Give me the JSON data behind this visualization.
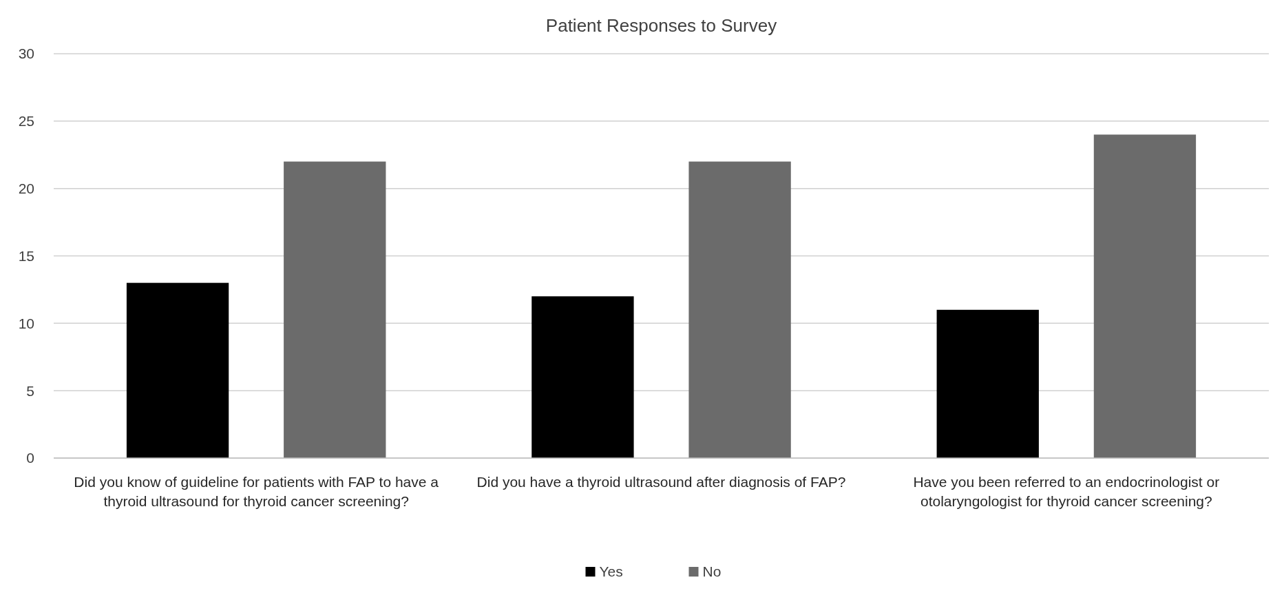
{
  "chart_data": {
    "type": "bar",
    "title": "Patient Responses to Survey",
    "categories": [
      "Did you know of guideline for patients with FAP to have a thyroid ultrasound for thyroid cancer screening?",
      "Did you have a thyroid ultrasound after diagnosis of FAP?",
      "Have you been referred to an endocrinologist or otolaryngologist for thyroid cancer screening?"
    ],
    "series": [
      {
        "name": "Yes",
        "color": "#000000",
        "values": [
          13,
          12,
          11
        ]
      },
      {
        "name": "No",
        "color": "#6b6b6b",
        "values": [
          22,
          22,
          24
        ]
      }
    ],
    "ylim": [
      0,
      30
    ],
    "yticks": [
      0,
      5,
      10,
      15,
      20,
      25,
      30
    ],
    "grid": "y",
    "legend": "bottom"
  }
}
